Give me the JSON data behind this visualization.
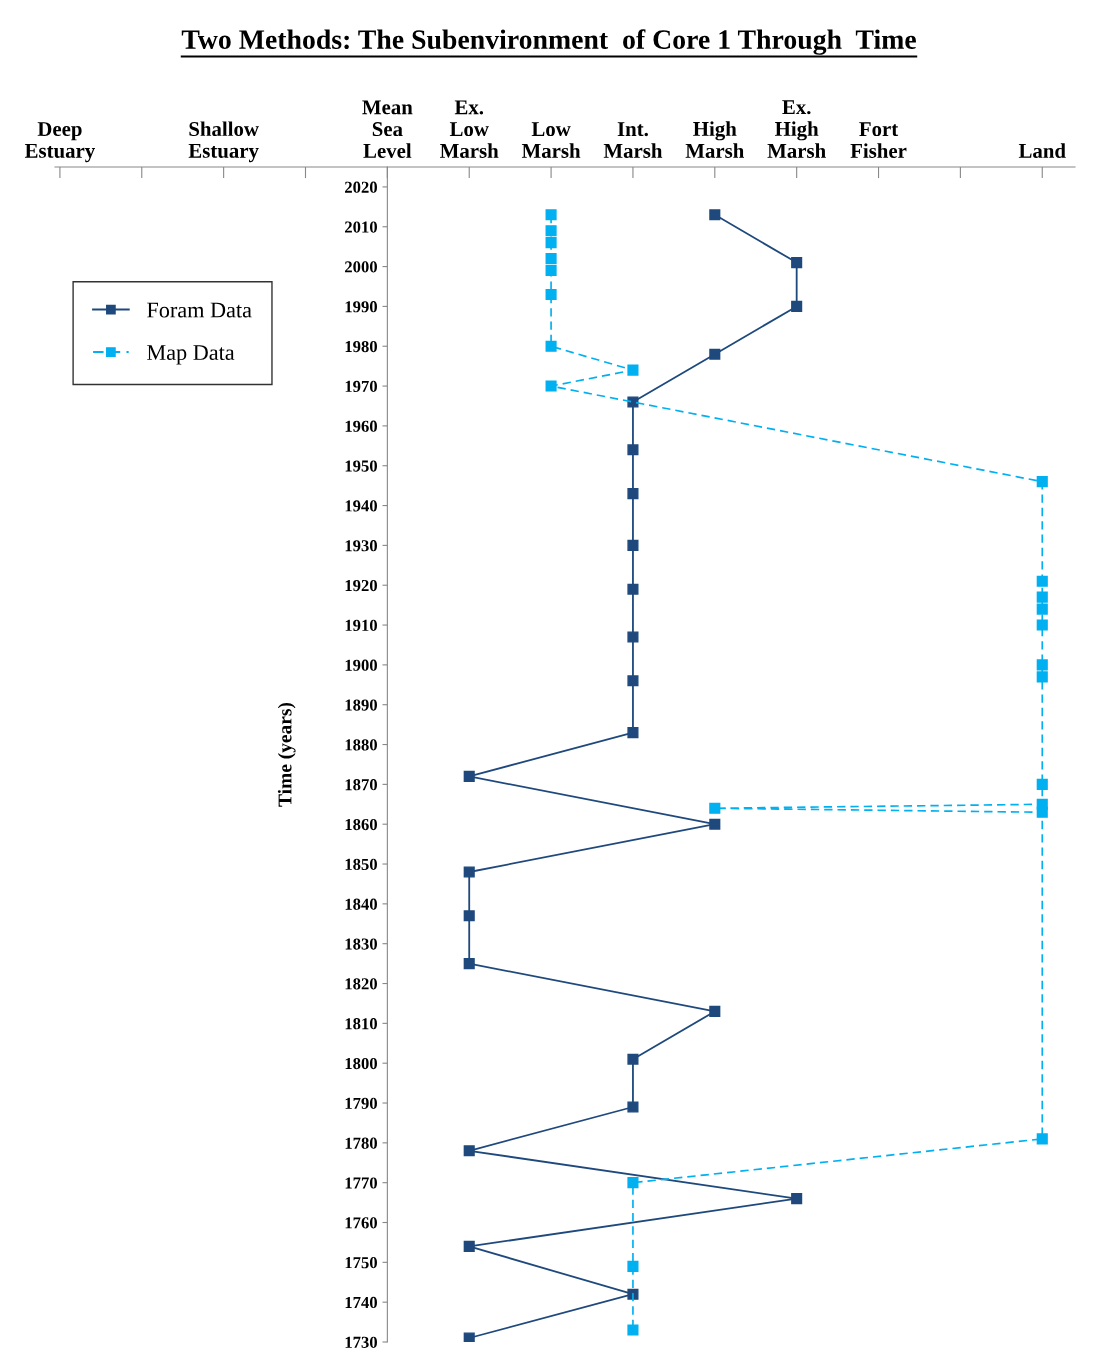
{
  "chart_data": {
    "type": "line",
    "title": "Two Methods: The Subenvironment  of Core 1 Through  Time",
    "ylabel": "Time (years)",
    "categories": [
      "Deep Estuary",
      null,
      "Shallow Estuary",
      null,
      "Mean Sea Level",
      "Ex. Low Marsh",
      "Low Marsh",
      "Int. Marsh",
      "High Marsh",
      "Ex. High Marsh",
      "Fort Fisher",
      null,
      "Land"
    ],
    "series": [
      {
        "name": "Foram Data",
        "color": "#1f497d",
        "line_style": "solid",
        "x": [
          "High Marsh",
          "Ex. High Marsh",
          "Ex. High Marsh",
          "High Marsh",
          "Int. Marsh",
          "Int. Marsh",
          "Int. Marsh",
          "Int. Marsh",
          "Int. Marsh",
          "Int. Marsh",
          "Int. Marsh",
          "Int. Marsh",
          "Ex. Low Marsh",
          "High Marsh",
          "Ex. Low Marsh",
          "Ex. Low Marsh",
          "Ex. Low Marsh",
          "High Marsh",
          "Int. Marsh",
          "Int. Marsh",
          "Ex. Low Marsh",
          "Ex. High Marsh",
          "Ex. Low Marsh",
          "Int. Marsh",
          "Ex. Low Marsh"
        ],
        "values": [
          2013,
          2001,
          1990,
          1978,
          1966,
          1954,
          1943,
          1930,
          1919,
          1907,
          1896,
          1883,
          1872,
          1860,
          1848,
          1837,
          1825,
          1813,
          1801,
          1789,
          1778,
          1766,
          1754,
          1742,
          1731
        ]
      },
      {
        "name": "Map Data",
        "color": "#00b0f0",
        "line_style": "dashed",
        "x": [
          "Low Marsh",
          "Low Marsh",
          "Low Marsh",
          "Low Marsh",
          "Low Marsh",
          "Low Marsh",
          "Low Marsh",
          "Int. Marsh",
          "Low Marsh",
          "Land",
          "Land",
          "Land",
          "Land",
          "Land",
          "Land",
          "Land",
          "Land",
          "Land",
          "High Marsh",
          "Land",
          "Land",
          "Int. Marsh",
          "Int. Marsh",
          "Int. Marsh"
        ],
        "values": [
          2013,
          2009,
          2006,
          2002,
          1999,
          1993,
          1980,
          1974,
          1970,
          1946,
          1921,
          1917,
          1914,
          1910,
          1900,
          1897,
          1870,
          1865,
          1864,
          1863,
          1781,
          1770,
          1749,
          1733
        ]
      }
    ],
    "ylim": [
      1730,
      2025
    ],
    "yticks": [
      1730,
      1740,
      1750,
      1760,
      1770,
      1780,
      1790,
      1800,
      1810,
      1820,
      1830,
      1840,
      1850,
      1860,
      1870,
      1880,
      1890,
      1900,
      1910,
      1920,
      1930,
      1940,
      1950,
      1960,
      1970,
      1980,
      1990,
      2000,
      2010,
      2020
    ],
    "marker": "square",
    "grid": false,
    "legend": "top left"
  }
}
